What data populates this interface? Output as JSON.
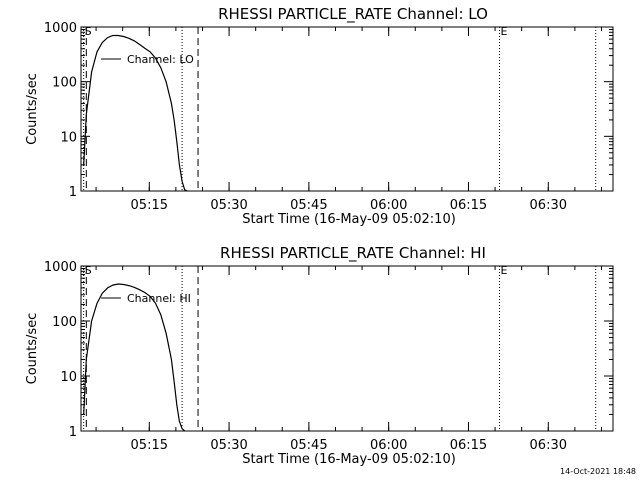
{
  "footer_timestamp": "14-Oct-2021 18:48",
  "chart_data": [
    {
      "type": "line",
      "title": "RHESSI PARTICLE_RATE Channel: LO",
      "xlabel": "Start Time (16-May-09 05:02:10)",
      "ylabel": "Counts/sec",
      "y_scale": "log",
      "ylim": [
        1,
        1000
      ],
      "xlim": [
        "05:02:10",
        "06:42:10"
      ],
      "x_ticks": [
        "05:15",
        "05:30",
        "05:45",
        "06:00",
        "06:15",
        "06:30"
      ],
      "y_ticks": [
        "1",
        "10",
        "100",
        "1000"
      ],
      "legend": {
        "label": "Channel: LO",
        "position": "upper-left"
      },
      "markers": [
        {
          "label": "S",
          "time": "05:02:40",
          "style": "dotted"
        },
        {
          "label": "",
          "time": "05:03:10",
          "style": "dashed"
        },
        {
          "label": "",
          "time": "05:21:10",
          "style": "dotted"
        },
        {
          "label": "",
          "time": "05:24:10",
          "style": "dashed"
        },
        {
          "label": "E",
          "time": "06:20:50",
          "style": "dotted"
        },
        {
          "label": "",
          "time": "06:38:55",
          "style": "dotted"
        }
      ],
      "series": [
        {
          "x": [
            "05:02:40",
            "05:03:10",
            "05:04:10",
            "05:05:10",
            "05:06:10",
            "05:07:10",
            "05:08:10",
            "05:09:10",
            "05:10:10",
            "05:11:10",
            "05:12:10",
            "05:13:10",
            "05:14:10",
            "05:15:10",
            "05:16:10",
            "05:17:10",
            "05:18:10",
            "05:19:10",
            "05:19:40",
            "05:20:10",
            "05:20:40",
            "05:21:10",
            "05:21:40",
            "05:22:10"
          ],
          "y": [
            3,
            25,
            150,
            350,
            520,
            640,
            700,
            700,
            670,
            620,
            560,
            480,
            410,
            350,
            270,
            180,
            100,
            40,
            20,
            8,
            3,
            1.5,
            1.05,
            1
          ]
        }
      ]
    },
    {
      "type": "line",
      "title": "RHESSI PARTICLE_RATE Channel: HI",
      "xlabel": "Start Time (16-May-09 05:02:10)",
      "ylabel": "Counts/sec",
      "y_scale": "log",
      "ylim": [
        1,
        1000
      ],
      "xlim": [
        "05:02:10",
        "06:42:10"
      ],
      "x_ticks": [
        "05:15",
        "05:30",
        "05:45",
        "06:00",
        "06:15",
        "06:30"
      ],
      "y_ticks": [
        "1",
        "10",
        "100",
        "1000"
      ],
      "legend": {
        "label": "Channel: HI",
        "position": "upper-left"
      },
      "markers": [
        {
          "label": "S",
          "time": "05:02:40",
          "style": "dotted"
        },
        {
          "label": "",
          "time": "05:03:10",
          "style": "dashed"
        },
        {
          "label": "",
          "time": "05:21:10",
          "style": "dotted"
        },
        {
          "label": "",
          "time": "05:24:10",
          "style": "dashed"
        },
        {
          "label": "E",
          "time": "06:20:50",
          "style": "dotted"
        },
        {
          "label": "",
          "time": "06:38:55",
          "style": "dotted"
        }
      ],
      "series": [
        {
          "x": [
            "05:02:40",
            "05:03:10",
            "05:04:10",
            "05:05:10",
            "05:06:10",
            "05:07:10",
            "05:08:10",
            "05:09:10",
            "05:10:10",
            "05:11:10",
            "05:12:10",
            "05:13:10",
            "05:14:10",
            "05:15:10",
            "05:16:10",
            "05:17:10",
            "05:18:10",
            "05:19:10",
            "05:19:40",
            "05:20:10",
            "05:20:40",
            "05:21:10",
            "05:21:40"
          ],
          "y": [
            2,
            20,
            100,
            210,
            320,
            400,
            450,
            470,
            460,
            440,
            410,
            370,
            330,
            280,
            210,
            130,
            60,
            20,
            8,
            3,
            1.5,
            1.1,
            1
          ]
        }
      ]
    }
  ]
}
